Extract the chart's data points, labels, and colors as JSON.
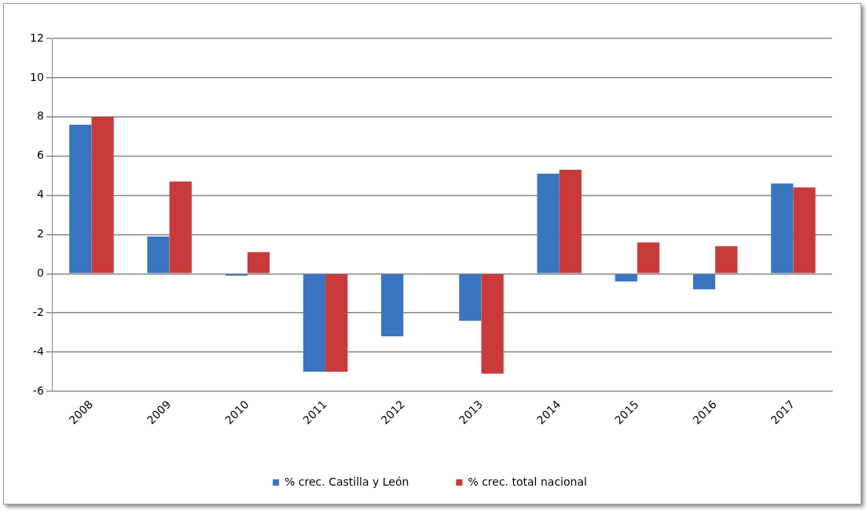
{
  "chart_data": {
    "type": "bar",
    "categories": [
      "2008",
      "2009",
      "2010",
      "2011",
      "2012",
      "2013",
      "2014",
      "2015",
      "2016",
      "2017"
    ],
    "series": [
      {
        "name": "% crec. Castilla y León",
        "color": "#3a76c0",
        "values": [
          7.6,
          1.9,
          -0.1,
          -5.0,
          -3.2,
          -2.4,
          5.1,
          -0.4,
          -0.8,
          4.6
        ]
      },
      {
        "name": "% crec. total nacional",
        "color": "#c93a3a",
        "values": [
          8.0,
          4.7,
          1.1,
          -5.0,
          0.03,
          -5.1,
          5.3,
          1.6,
          1.4,
          4.4
        ]
      }
    ],
    "ylim": [
      -6,
      12
    ],
    "yticks": [
      -6,
      -4,
      -2,
      0,
      2,
      4,
      6,
      8,
      10,
      12
    ],
    "grid": "y",
    "legend": "bottom"
  }
}
